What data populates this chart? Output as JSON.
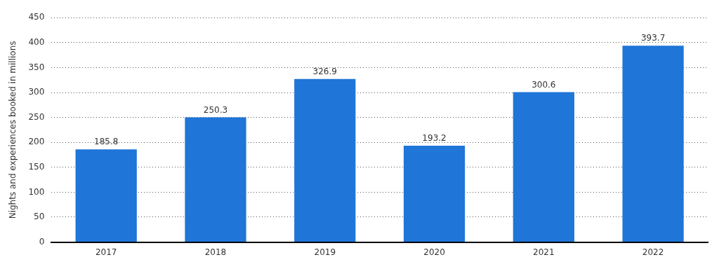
{
  "chart_data": {
    "type": "bar",
    "ylabel": "Nights and experiences booked in millions",
    "categories": [
      "2017",
      "2018",
      "2019",
      "2020",
      "2021",
      "2022"
    ],
    "values": [
      185.8,
      250.3,
      326.9,
      193.2,
      300.6,
      393.7
    ],
    "color": "#1f75d8",
    "ylim": [
      0,
      450
    ],
    "yticks": [
      0,
      50,
      100,
      150,
      200,
      250,
      300,
      350,
      400,
      450
    ],
    "grid": "y",
    "data_labels": true
  }
}
